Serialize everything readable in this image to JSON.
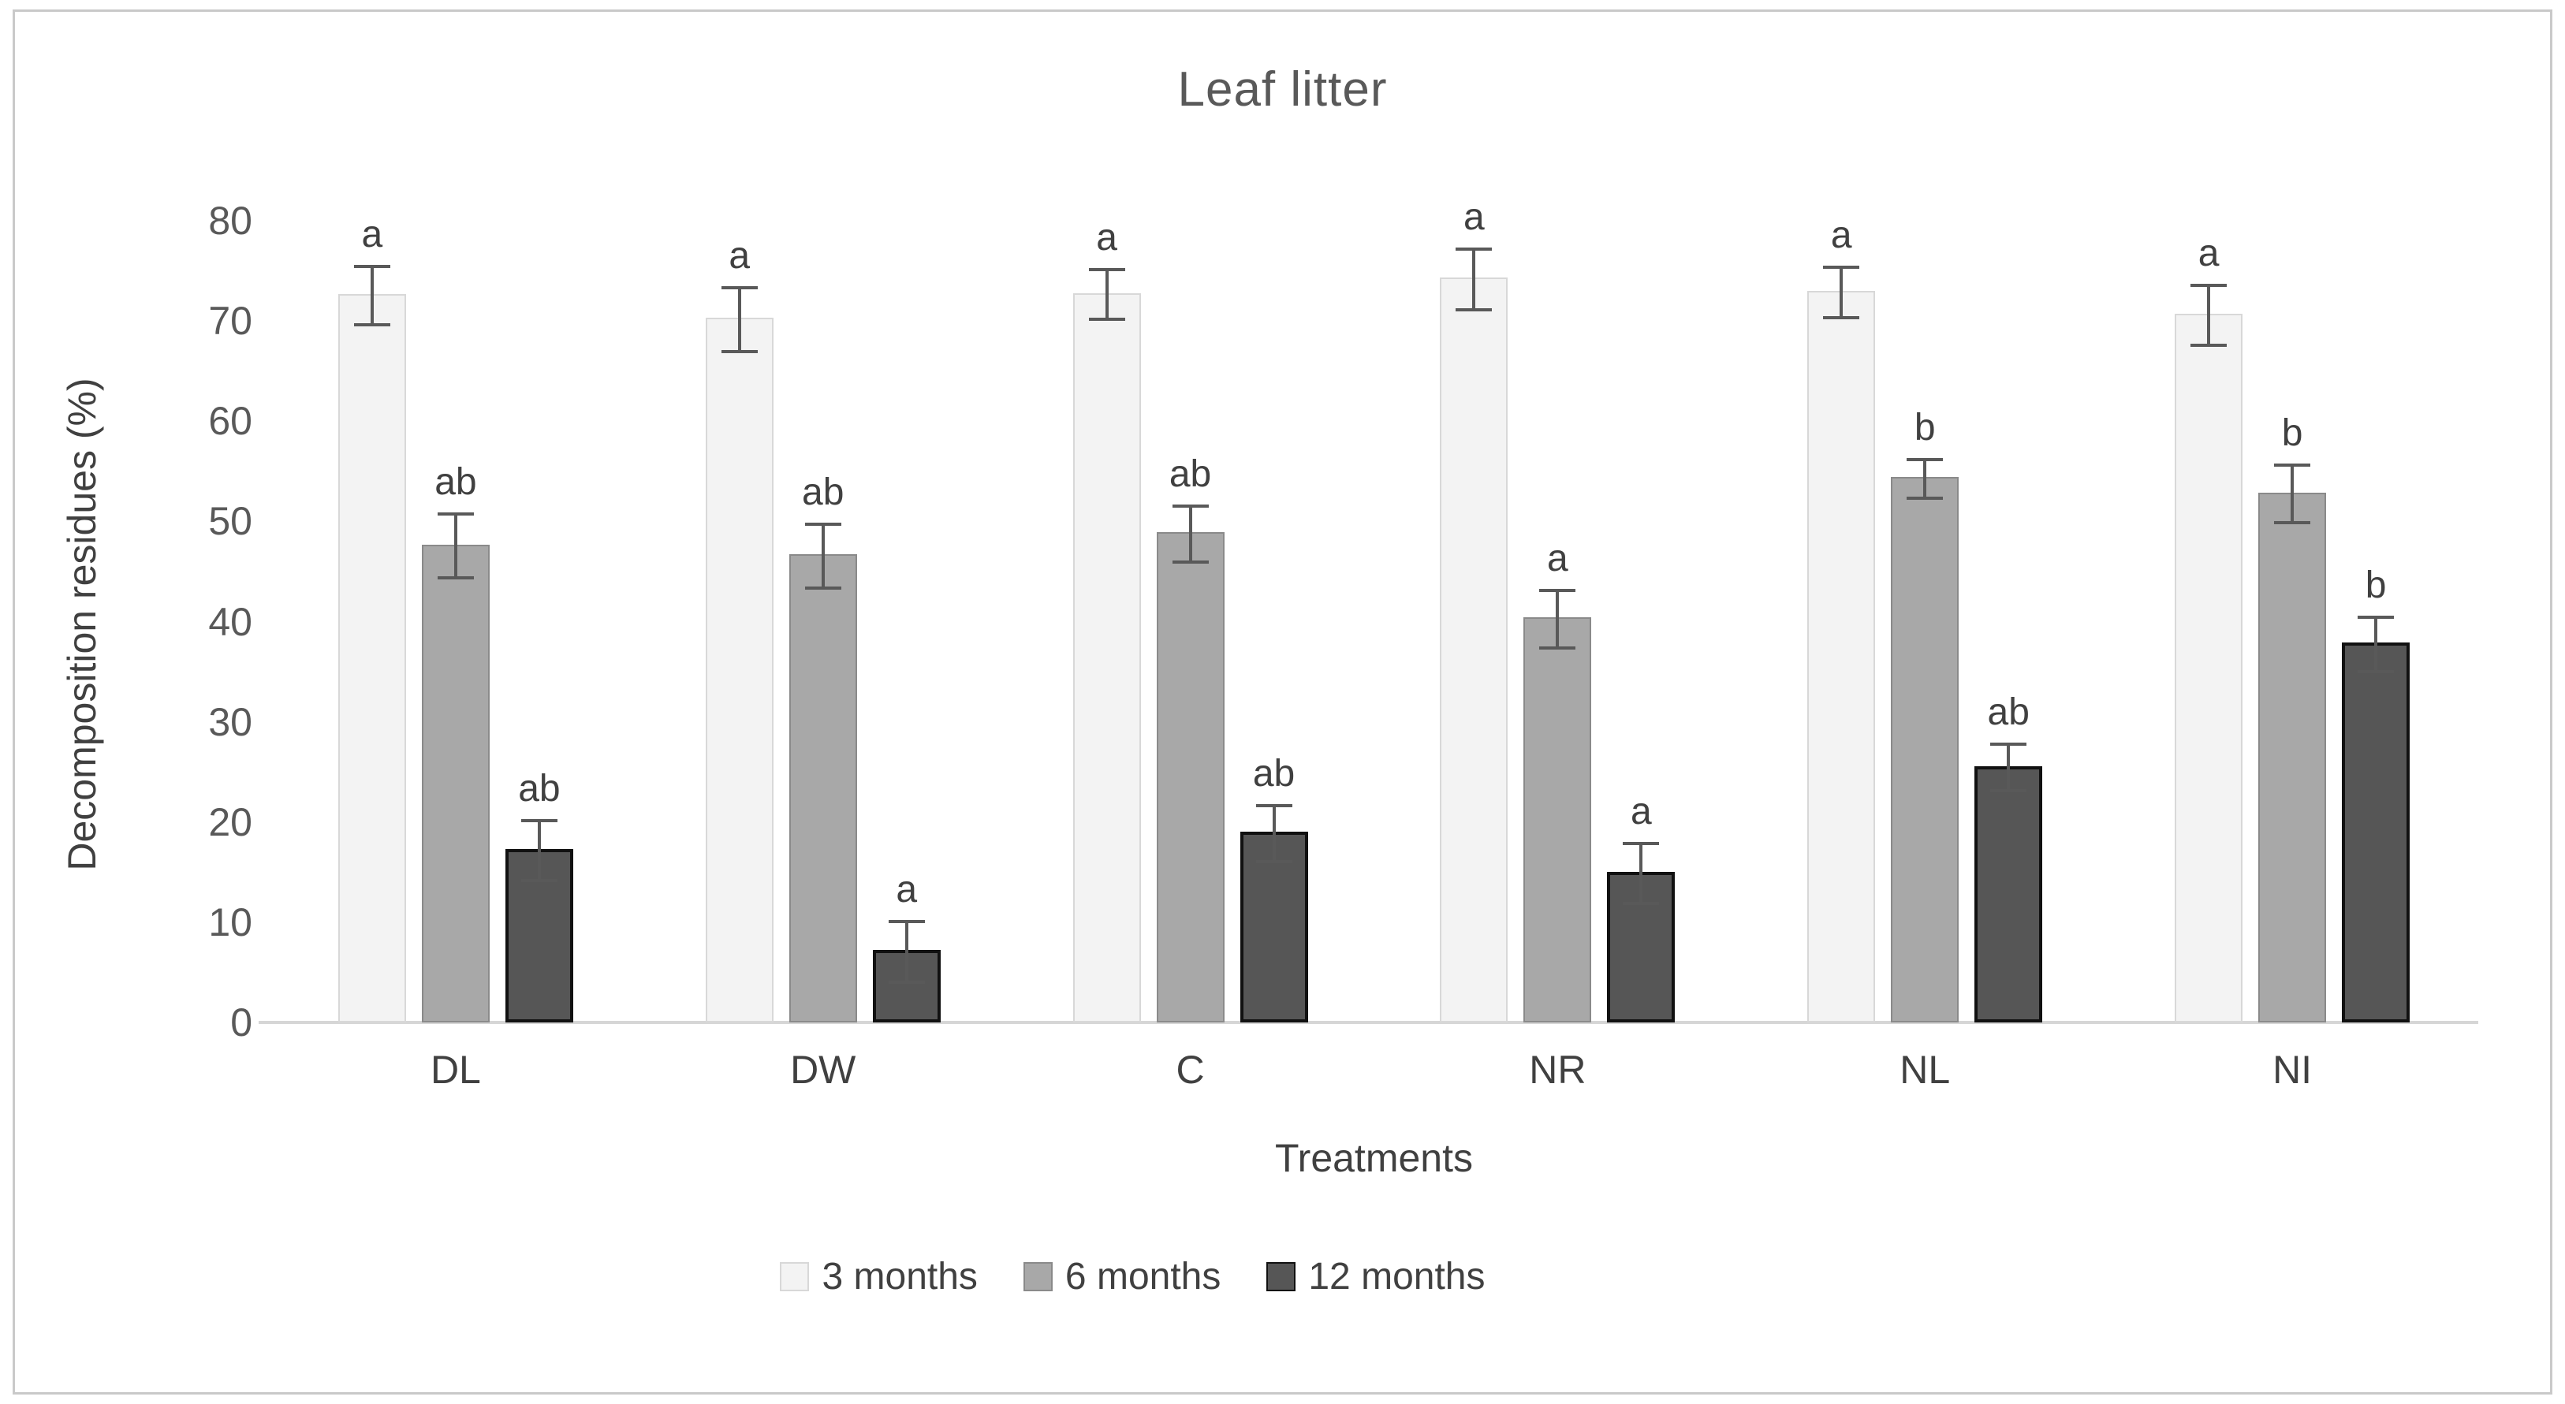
{
  "chart_data": {
    "type": "bar",
    "title": "Leaf litter",
    "xlabel": "Treatments",
    "ylabel": "Decomposition residues (%)",
    "ylim": [
      0,
      80
    ],
    "yticks": [
      0,
      10,
      20,
      30,
      40,
      50,
      60,
      70,
      80
    ],
    "grid": false,
    "legend_position": "bottom",
    "error_bars": true,
    "categories": [
      "DL",
      "DW",
      "C",
      "NR",
      "NL",
      "NI"
    ],
    "series": [
      {
        "name": "3 months",
        "color": "#f3f3f3",
        "border_color": "#d8d8d8",
        "border_width": 2,
        "values": [
          72.7,
          70.3,
          72.8,
          74.3,
          73.0,
          70.7
        ],
        "errors": [
          2.9,
          3.2,
          2.5,
          3.0,
          2.5,
          3.0
        ],
        "letters": [
          "a",
          "a",
          "a",
          "a",
          "a",
          "a"
        ]
      },
      {
        "name": "6 months",
        "color": "#a8a8a8",
        "border_color": "#8a8a8a",
        "border_width": 2,
        "values": [
          47.7,
          46.7,
          48.9,
          40.4,
          54.4,
          52.9
        ],
        "errors": [
          3.2,
          3.2,
          2.8,
          2.9,
          1.9,
          2.9
        ],
        "letters": [
          "ab",
          "ab",
          "ab",
          "a",
          "b",
          "b"
        ]
      },
      {
        "name": "12 months",
        "color": "#565656",
        "border_color": "#111111",
        "border_width": 4,
        "values": [
          17.3,
          7.2,
          19.0,
          15.0,
          25.6,
          37.9
        ],
        "errors": [
          3.0,
          3.0,
          2.8,
          3.0,
          2.3,
          2.7
        ],
        "letters": [
          "ab",
          "a",
          "ab",
          "a",
          "ab",
          "b"
        ]
      }
    ],
    "colors": {
      "title_text": "#595959",
      "axis_text": "#404040",
      "tick_text": "#595959",
      "error_bar": "#595959",
      "baseline": "#d6d6d6",
      "frame_border": "#c9c9c9"
    }
  }
}
